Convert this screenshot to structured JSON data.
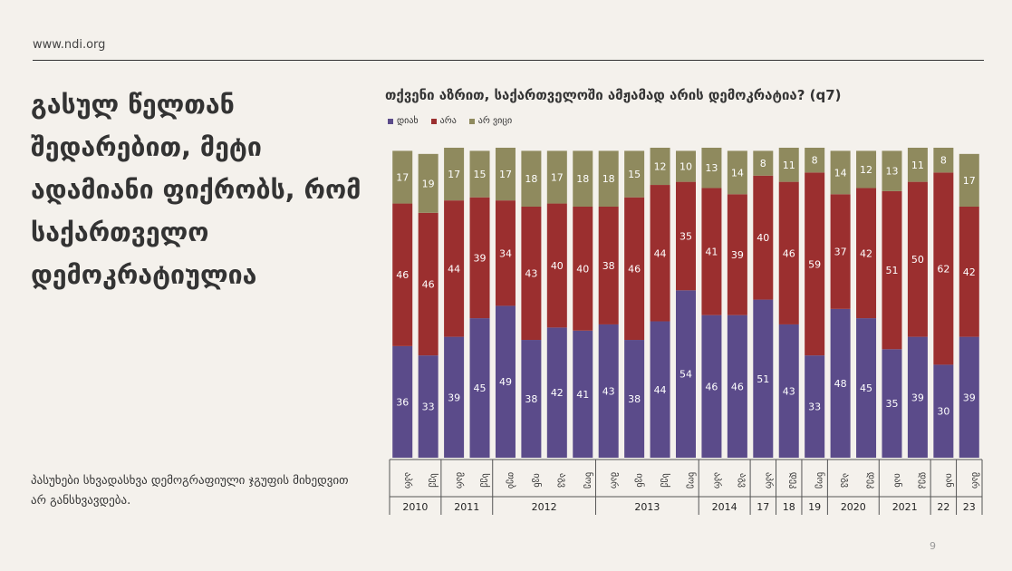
{
  "header": {
    "site": "www.ndi.org"
  },
  "headline": "გასულ წელთან შედარებით, მეტი ადამიანი ფიქრობს, რომ საქართველო დემოკრატიულია",
  "note": "პასუხები სხვადასხვა დემოგრაფიული ჯგუფის მიხედვით არ განსხვავდება.",
  "page_number": "9",
  "colors": {
    "yes": "#5b4b8a",
    "no": "#9b2f2f",
    "dk": "#8f8a5e"
  },
  "chart_data": {
    "type": "bar",
    "stacked": true,
    "title": "თქვენი აზრით, საქართველოში ამჟამად არის დემოკრატია? (q7)",
    "legend": [
      "დიახ",
      "არა",
      "არ ვიცი"
    ],
    "categories": [
      "აპრ",
      "სექ",
      "მარ",
      "სექ",
      "თებ",
      "ივნ",
      "აგვ",
      "ნოე",
      "მარ",
      "ივნ",
      "სექ",
      "ნოე",
      "აპრ",
      "აგვ",
      "აპრ",
      "დეკ",
      "ნოე",
      "აგვ",
      "დეკ",
      "იან",
      "დეკ",
      "იან",
      "მარ"
    ],
    "series": [
      {
        "name": "დიახ",
        "values": [
          36,
          33,
          39,
          45,
          49,
          38,
          42,
          41,
          43,
          38,
          44,
          54,
          46,
          46,
          51,
          43,
          33,
          48,
          45,
          35,
          39,
          30,
          39
        ]
      },
      {
        "name": "არა",
        "values": [
          46,
          46,
          44,
          39,
          34,
          43,
          40,
          40,
          38,
          46,
          44,
          35,
          41,
          39,
          40,
          46,
          59,
          37,
          42,
          51,
          50,
          62,
          42
        ]
      },
      {
        "name": "არ ვიცი",
        "values": [
          17,
          19,
          17,
          15,
          17,
          18,
          17,
          18,
          18,
          15,
          12,
          10,
          13,
          14,
          8,
          11,
          8,
          14,
          12,
          13,
          11,
          8,
          17
        ]
      }
    ],
    "year_groups": [
      {
        "label": "2010",
        "count": 2
      },
      {
        "label": "2011",
        "count": 2
      },
      {
        "label": "2012",
        "count": 4
      },
      {
        "label": "2013",
        "count": 4
      },
      {
        "label": "2014",
        "count": 2
      },
      {
        "label": "17",
        "count": 1
      },
      {
        "label": "18",
        "count": 1
      },
      {
        "label": "19",
        "count": 1
      },
      {
        "label": "2020",
        "count": 2
      },
      {
        "label": "2021",
        "count": 2
      },
      {
        "label": "22",
        "count": 1
      },
      {
        "label": "23",
        "count": 1
      }
    ],
    "ylim": [
      0,
      100
    ]
  }
}
